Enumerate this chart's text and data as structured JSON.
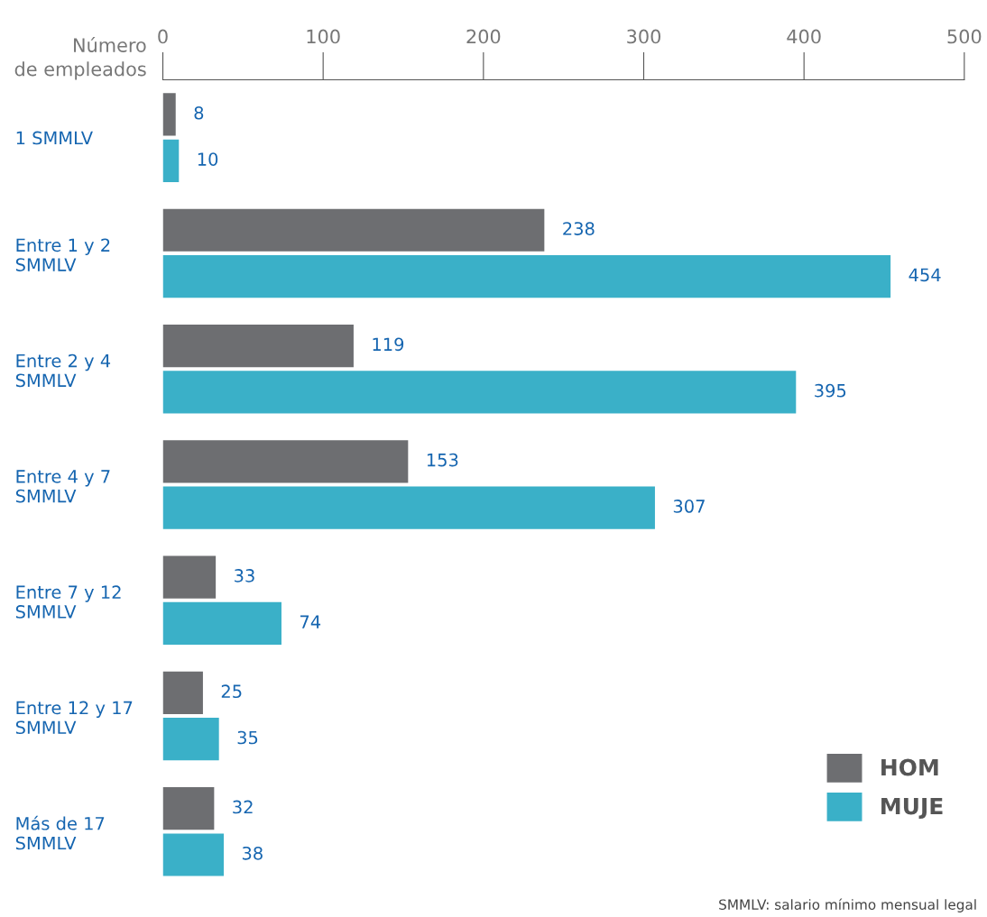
{
  "chart_data": {
    "type": "bar",
    "orientation": "horizontal",
    "xlabel": "Número\nde empleados",
    "categories": [
      "1 SMMLV",
      "Entre 1 y 2\nSMMLV",
      "Entre 2 y 4\nSMMLV",
      "Entre 4 y 7\nSMMLV",
      "Entre 7 y 12\nSMMLV",
      "Entre 12 y 17\nSMMLV",
      "Más de 17\nSMMLV"
    ],
    "series": [
      {
        "name": "HOM",
        "color": "#6d6e71",
        "values": [
          8,
          238,
          119,
          153,
          33,
          25,
          32
        ]
      },
      {
        "name": "MUJE",
        "color": "#3ab0c8",
        "values": [
          10,
          454,
          395,
          307,
          74,
          35,
          38
        ]
      }
    ],
    "xlim": [
      0,
      500
    ],
    "xticks": [
      0,
      100,
      200,
      300,
      400,
      500
    ],
    "data_labels": true,
    "grid": false,
    "legend": "bottom right",
    "annotations": [
      "SMMLV: salario mínimo mensual legal"
    ]
  }
}
